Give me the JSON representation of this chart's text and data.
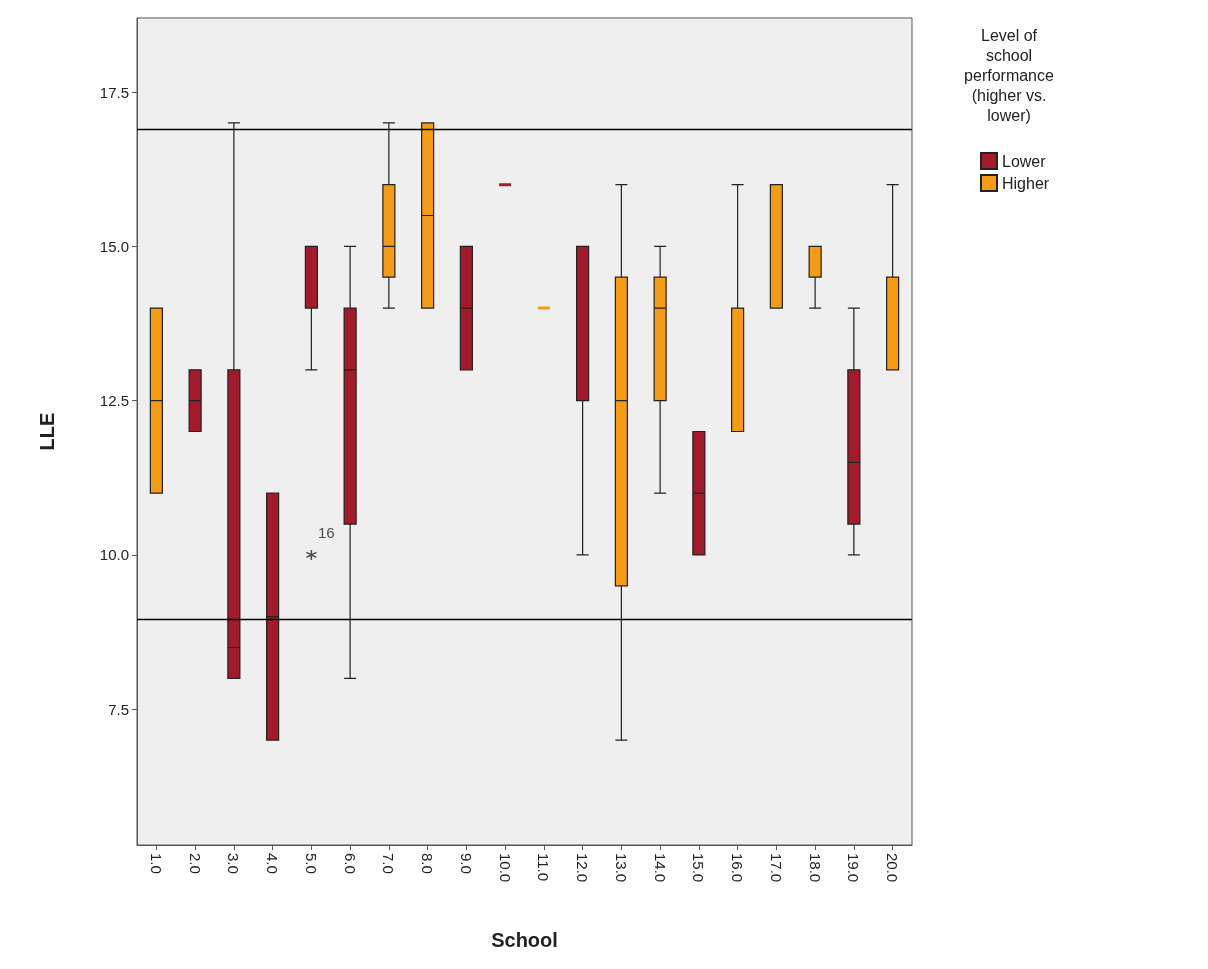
{
  "chart_data": {
    "type": "box",
    "xlabel": "School",
    "ylabel": "LLE",
    "legend_title": "Level of school performance (higher vs. lower)",
    "categories": [
      "1.0",
      "2.0",
      "3.0",
      "4.0",
      "5.0",
      "6.0",
      "7.0",
      "8.0",
      "9.0",
      "10.0",
      "11.0",
      "12.0",
      "13.0",
      "14.0",
      "15.0",
      "16.0",
      "17.0",
      "18.0",
      "19.0",
      "20.0"
    ],
    "series": [
      {
        "name": "Lower",
        "color": "#a31a2b",
        "boxes": [
          null,
          {
            "low": 12,
            "q1": 12,
            "median": 12.5,
            "q3": 13,
            "high": 13
          },
          {
            "low": 8,
            "q1": 8,
            "median": 8.5,
            "q3": 13,
            "high": 17
          },
          {
            "low": 7,
            "q1": 7,
            "median": 9,
            "q3": 11,
            "high": 11
          },
          {
            "low": 13,
            "q1": 14,
            "median": 14,
            "q3": 15,
            "high": 15,
            "outliers": [
              10
            ]
          },
          {
            "low": 8,
            "q1": 10.5,
            "median": 13,
            "q3": 14,
            "high": 15
          },
          null,
          null,
          {
            "low": 13,
            "q1": 13,
            "median": 14,
            "q3": 15,
            "high": 15
          },
          {
            "low": 16,
            "q1": 16,
            "median": 16,
            "q3": 16,
            "high": 16
          },
          null,
          {
            "low": 10,
            "q1": 12.5,
            "median": 15,
            "q3": 15,
            "high": 15
          },
          null,
          null,
          {
            "low": 10,
            "q1": 10,
            "median": 11,
            "q3": 12,
            "high": 12
          },
          null,
          null,
          null,
          {
            "low": 10,
            "q1": 10.5,
            "median": 11.5,
            "q3": 13,
            "high": 14
          },
          null
        ]
      },
      {
        "name": "Higher",
        "color": "#f59b14",
        "boxes": [
          {
            "low": 11,
            "q1": 11,
            "median": 12.5,
            "q3": 14,
            "high": 14
          },
          null,
          null,
          null,
          null,
          null,
          {
            "low": 14,
            "q1": 14.5,
            "median": 15,
            "q3": 16,
            "high": 17
          },
          {
            "low": 14,
            "q1": 14,
            "median": 15.5,
            "q3": 17,
            "high": 17
          },
          null,
          null,
          {
            "low": 14,
            "q1": 14,
            "median": 14,
            "q3": 14,
            "high": 14
          },
          null,
          {
            "low": 7,
            "q1": 9.5,
            "median": 12.5,
            "q3": 14.5,
            "high": 16
          },
          {
            "low": 11,
            "q1": 12.5,
            "median": 14,
            "q3": 14.5,
            "high": 15
          },
          null,
          {
            "low": 12,
            "q1": 12,
            "median": 12,
            "q3": 14,
            "high": 16
          },
          {
            "low": 14,
            "q1": 14,
            "median": 14,
            "q3": 16,
            "high": 16
          },
          {
            "low": 14,
            "q1": 14.5,
            "median": 15,
            "q3": 15,
            "high": 15
          },
          null,
          {
            "low": 13,
            "q1": 13,
            "median": 13,
            "q3": 14.5,
            "high": 16
          }
        ]
      }
    ],
    "ylim": [
      5.3,
      18.7
    ],
    "yticks": [
      {
        "value": 7.5,
        "label": "7.5"
      },
      {
        "value": 10,
        "label": "10.0"
      },
      {
        "value": 12.5,
        "label": "12.5"
      },
      {
        "value": 15,
        "label": "15.0"
      },
      {
        "value": 17.5,
        "label": "17.5"
      }
    ],
    "ref_lines": [
      {
        "axis": "y",
        "value": 16.9,
        "label": null,
        "color": "#000000"
      },
      {
        "axis": "y",
        "value": 8.95,
        "label": null,
        "color": "#000000"
      }
    ],
    "annotations": [
      "16"
    ],
    "grid": false,
    "legend": "top right"
  }
}
